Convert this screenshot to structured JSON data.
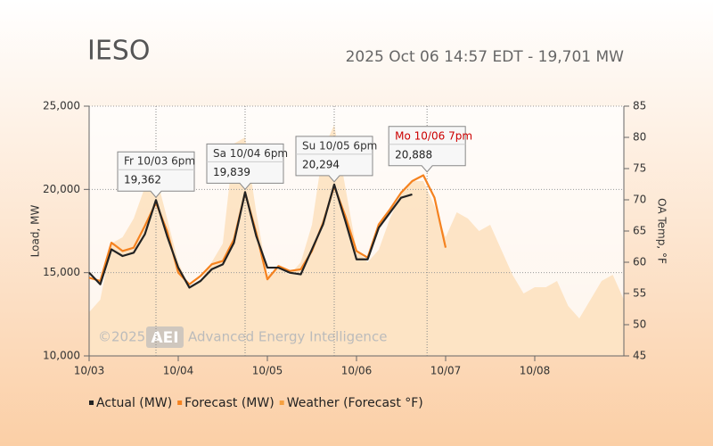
{
  "chart_data": {
    "type": "line",
    "title": "IESO",
    "subtitle": "2025 Oct 06 14:57 EDT - 19,701 MW",
    "y_label": "Load, MW",
    "y2_label": "OA Temp, °F",
    "watermark": [
      "©2025",
      "AEI",
      "Advanced Energy Intelligence"
    ],
    "x": [
      0,
      0.125,
      0.25,
      0.375,
      0.5,
      0.625,
      0.75,
      0.875,
      1,
      1.125,
      1.25,
      1.375,
      1.5,
      1.625,
      1.75,
      1.875,
      2,
      2.125,
      2.25,
      2.375,
      2.5,
      2.625,
      2.75,
      2.875,
      3,
      3.125,
      3.25,
      3.375,
      3.5,
      3.625,
      3.75,
      3.875,
      4,
      4.125,
      4.25,
      4.375,
      4.5,
      4.625,
      4.75,
      4.875,
      5,
      5.125,
      5.25,
      5.375,
      5.5,
      5.625,
      5.75,
      5.875,
      6
    ],
    "xlim": [
      0,
      6
    ],
    "xticks": [
      {
        "value": 0,
        "label": "10/03"
      },
      {
        "value": 1,
        "label": "10/04"
      },
      {
        "value": 2,
        "label": "10/05"
      },
      {
        "value": 3,
        "label": "10/06"
      },
      {
        "value": 4,
        "label": "10/07"
      },
      {
        "value": 5,
        "label": "10/08"
      }
    ],
    "ylim": [
      10000,
      25000
    ],
    "yticks": [
      {
        "value": 10000,
        "label": "10,000"
      },
      {
        "value": 15000,
        "label": "15,000"
      },
      {
        "value": 20000,
        "label": "20,000"
      },
      {
        "value": 25000,
        "label": "25,000"
      }
    ],
    "y2lim": [
      45,
      85
    ],
    "y2ticks": [
      45,
      50,
      55,
      60,
      65,
      70,
      75,
      80,
      85
    ],
    "grid": true,
    "series": [
      {
        "name": "Weather (Forecast °F)",
        "color": "#fde0bd",
        "kind": "area",
        "axis": "y2",
        "values": [
          52,
          54,
          63,
          64,
          67,
          72,
          74,
          67,
          60,
          56,
          57,
          60,
          63,
          79,
          80,
          68,
          58,
          59,
          58,
          60,
          66,
          78,
          82,
          72,
          62,
          60,
          62,
          67,
          71,
          73,
          73,
          69,
          64,
          68,
          67,
          65,
          66,
          62,
          58,
          55,
          56,
          56,
          57,
          53,
          51,
          54,
          57,
          58,
          54
        ]
      },
      {
        "name": "Forecast (MW)",
        "color": "#f5821f",
        "kind": "line",
        "values": [
          14700,
          14500,
          16800,
          16300,
          16500,
          17800,
          19200,
          17500,
          15000,
          14300,
          14800,
          15500,
          15700,
          17000,
          19800,
          17400,
          14600,
          15400,
          15100,
          15200,
          16300,
          18000,
          20200,
          18400,
          16300,
          15900,
          17900,
          18800,
          19800,
          20500,
          20850,
          19500,
          16500,
          null,
          null,
          null,
          null,
          null,
          null,
          null,
          null,
          null,
          null,
          null,
          null,
          null,
          null,
          null,
          null
        ]
      },
      {
        "name": "Actual (MW)",
        "color": "#222222",
        "kind": "line",
        "values": [
          15000,
          14300,
          16400,
          16000,
          16200,
          17300,
          19362,
          17200,
          15300,
          14100,
          14500,
          15200,
          15500,
          16800,
          19839,
          17200,
          15300,
          15300,
          15000,
          14900,
          16400,
          17900,
          20294,
          18100,
          15800,
          15800,
          17700,
          18600,
          19500,
          19701,
          null,
          null,
          null,
          null,
          null,
          null,
          null,
          null,
          null,
          null,
          null,
          null,
          null,
          null,
          null,
          null,
          null,
          null,
          null
        ]
      }
    ],
    "annotations": [
      {
        "label": "Fr 10/03 6pm",
        "x": 0.75,
        "value": 19362,
        "value_label": "19,362",
        "color": "#333333"
      },
      {
        "label": "Sa 10/04 6pm",
        "x": 1.75,
        "value": 19839,
        "value_label": "19,839",
        "color": "#333333"
      },
      {
        "label": "Su 10/05 6pm",
        "x": 2.75,
        "value": 20294,
        "value_label": "20,294",
        "color": "#333333"
      },
      {
        "label": "Mo 10/06 7pm",
        "x": 3.7917,
        "value": 20888,
        "value_label": "20,888",
        "color": "#cc0000"
      }
    ]
  }
}
